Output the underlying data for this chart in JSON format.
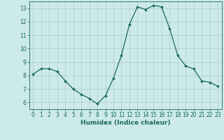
{
  "x": [
    0,
    1,
    2,
    3,
    4,
    5,
    6,
    7,
    8,
    9,
    10,
    11,
    12,
    13,
    14,
    15,
    16,
    17,
    18,
    19,
    20,
    21,
    22,
    23
  ],
  "y": [
    8.1,
    8.5,
    8.5,
    8.3,
    7.6,
    7.0,
    6.6,
    6.3,
    5.9,
    6.5,
    7.8,
    9.5,
    11.8,
    13.1,
    12.9,
    13.2,
    13.1,
    11.5,
    9.5,
    8.7,
    8.5,
    7.6,
    7.5,
    7.2
  ],
  "line_color": "#1a6b5a",
  "marker": "D",
  "marker_size": 1.8,
  "bg_color": "#cce9ec",
  "grid_color": "#b0c8cc",
  "xlabel": "Humidex (Indice chaleur)",
  "ylim": [
    5.5,
    13.5
  ],
  "yticks": [
    6,
    7,
    8,
    9,
    10,
    11,
    12,
    13
  ],
  "xticks": [
    0,
    1,
    2,
    3,
    4,
    5,
    6,
    7,
    8,
    9,
    10,
    11,
    12,
    13,
    14,
    15,
    16,
    17,
    18,
    19,
    20,
    21,
    22,
    23
  ],
  "tick_fontsize": 5.5,
  "xlabel_fontsize": 6.5,
  "tick_color": "#1a6b5a",
  "label_color": "#1a6b5a"
}
